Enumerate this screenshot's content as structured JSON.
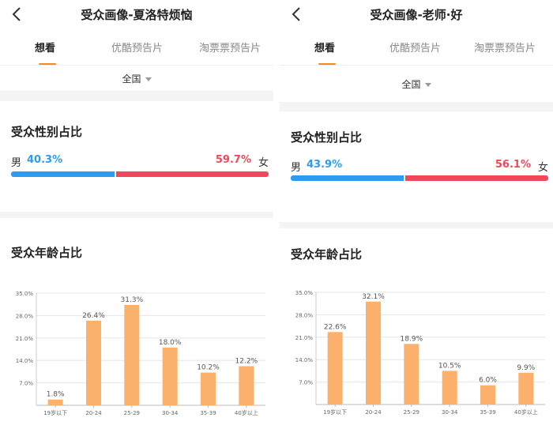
{
  "colors": {
    "male": "#2d9cf0",
    "female": "#f0485a",
    "bar": "#fbb16b",
    "accent": "#f7891e"
  },
  "panels": [
    {
      "title": "受众画像-夏洛特烦恼",
      "tabs": [
        "想看",
        "优酷预告片",
        "淘票票预告片"
      ],
      "region": "全国",
      "gender_title": "受众性别占比",
      "male_label": "男",
      "male_pct": "40.3%",
      "female_label": "女",
      "female_pct": "59.7%",
      "male_ratio": 0.403,
      "age_title": "受众年龄占比",
      "chart_data": {
        "type": "bar",
        "categories": [
          "19岁以下",
          "20-24",
          "25-29",
          "30-34",
          "35-39",
          "40岁以上"
        ],
        "values": [
          1.8,
          26.4,
          31.3,
          18.0,
          10.2,
          12.2
        ],
        "value_labels": [
          "1.8%",
          "26.4%",
          "31.3%",
          "18.0%",
          "10.2%",
          "12.2%"
        ],
        "yticks": [
          "0",
          "7.0%",
          "14.0%",
          "21.0%",
          "28.0%",
          "35.0%"
        ],
        "ylim": [
          0,
          35
        ],
        "grid": true
      }
    },
    {
      "title": "受众画像-老师·好",
      "tabs": [
        "想看",
        "优酷预告片",
        "淘票票预告片"
      ],
      "region": "全国",
      "gender_title": "受众性别占比",
      "male_label": "男",
      "male_pct": "43.9%",
      "female_label": "女",
      "female_pct": "56.1%",
      "male_ratio": 0.439,
      "age_title": "受众年龄占比",
      "chart_data": {
        "type": "bar",
        "categories": [
          "19岁以下",
          "20-24",
          "25-29",
          "30-34",
          "35-39",
          "40岁以上"
        ],
        "values": [
          22.6,
          32.1,
          18.9,
          10.5,
          6.0,
          9.9
        ],
        "value_labels": [
          "22.6%",
          "32.1%",
          "18.9%",
          "10.5%",
          "6.0%",
          "9.9%"
        ],
        "yticks": [
          "0",
          "7.0%",
          "14.0%",
          "21.0%",
          "28.0%",
          "35.0%"
        ],
        "ylim": [
          0,
          35
        ],
        "grid": true
      }
    }
  ]
}
